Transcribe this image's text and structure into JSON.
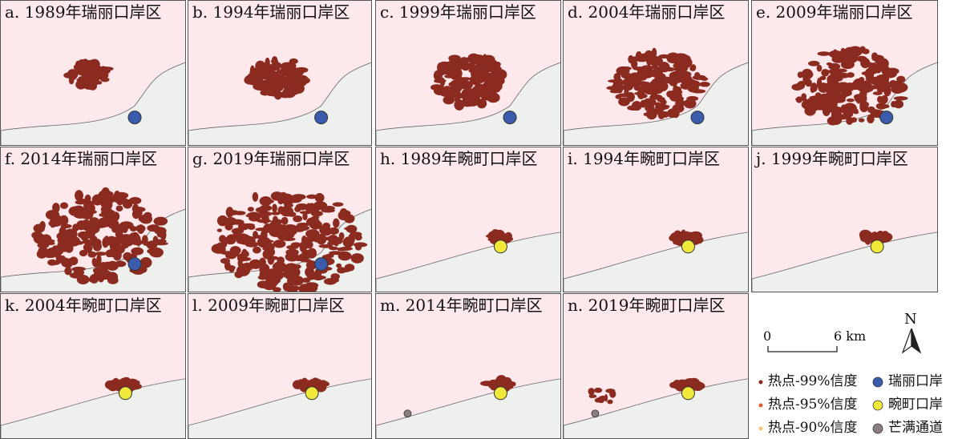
{
  "panels": [
    {
      "label": "a. 1989年瑞丽口岸区",
      "port": "ruili",
      "extent": 1
    },
    {
      "label": "b. 1994年瑞丽口岸区",
      "port": "ruili",
      "extent": 2
    },
    {
      "label": "c. 1999年瑞丽口岸区",
      "port": "ruili",
      "extent": 3
    },
    {
      "label": "d. 2004年瑞丽口岸区",
      "port": "ruili",
      "extent": 4
    },
    {
      "label": "e. 2009年瑞丽口岸区",
      "port": "ruili",
      "extent": 5
    },
    {
      "label": "f. 2014年瑞丽口岸区",
      "port": "ruili",
      "extent": 6
    },
    {
      "label": "g. 2019年瑞丽口岸区",
      "port": "ruili",
      "extent": 7
    },
    {
      "label": "h. 1989年畹町口岸区",
      "port": "wanding",
      "extent": 1
    },
    {
      "label": "i. 1994年畹町口岸区",
      "port": "wanding",
      "extent": 2
    },
    {
      "label": "j. 1999年畹町口岸区",
      "port": "wanding",
      "extent": 2
    },
    {
      "label": "k. 2004年畹町口岸区",
      "port": "wanding",
      "extent": 2
    },
    {
      "label": "l. 2009年畹町口岸区",
      "port": "wanding",
      "extent": 2
    },
    {
      "label": "m. 2014年畹町口岸区",
      "port": "wanding",
      "extent": 2,
      "mangman": true
    },
    {
      "label": "n. 2019年畹町口岸区",
      "port": "wanding",
      "extent": 2,
      "mangman": true,
      "extra_cluster": true
    }
  ],
  "scale": {
    "start": "0",
    "end": "6 km"
  },
  "north_label": "N",
  "legend": [
    {
      "label": "热点-99%信度",
      "color": "#8b2a1e",
      "shape": "dot"
    },
    {
      "label": "热点-95%信度",
      "color": "#e0602a",
      "shape": "dot"
    },
    {
      "label": "热点-90%信度",
      "color": "#f2c97a",
      "shape": "dot"
    },
    {
      "label": "瑞丽口岸",
      "color": "#3b5cad",
      "shape": "circle"
    },
    {
      "label": "畹町口岸",
      "color": "#f0e93a",
      "shape": "circle"
    },
    {
      "label": "芒满通道",
      "color": "#8a7f7f",
      "shape": "circle"
    }
  ],
  "colors": {
    "background": "#fde8ec",
    "border_side": "#eef0ee",
    "hotspot": "#8b2a1e"
  }
}
